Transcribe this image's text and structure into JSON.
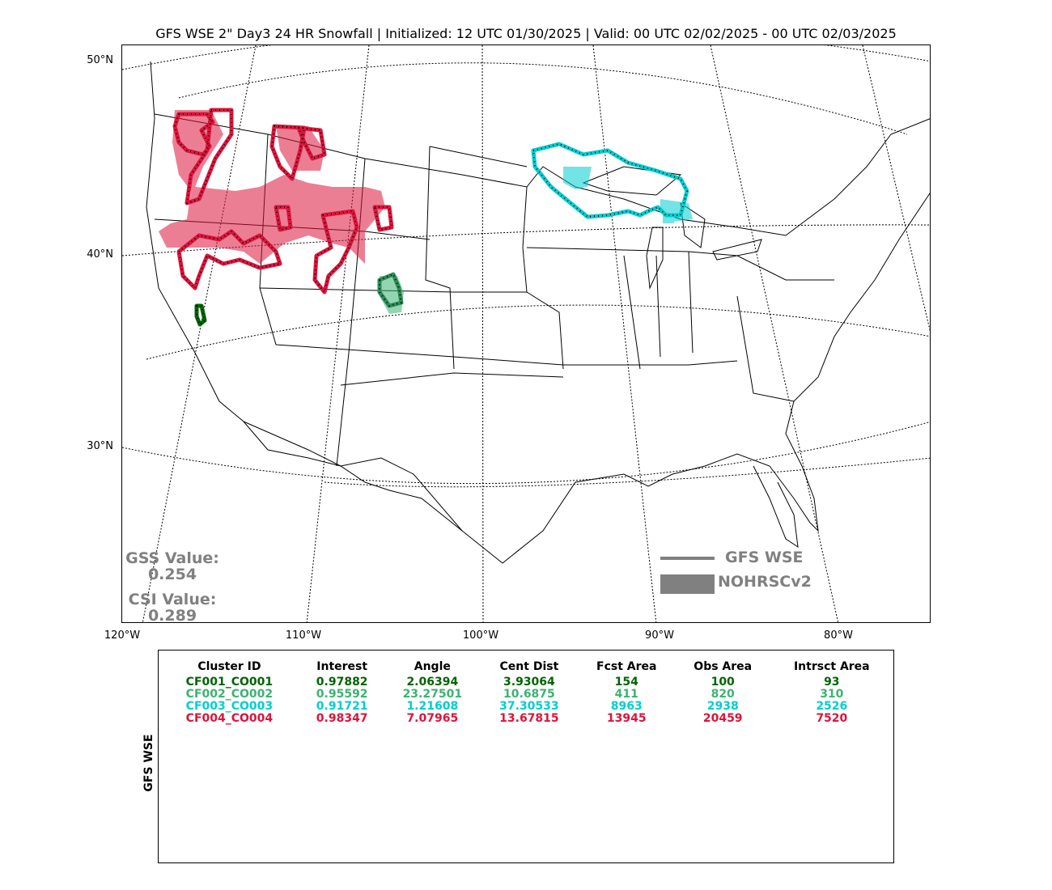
{
  "title": "GFS WSE 2\" Day3 24 HR Snowfall | Initialized: 12 UTC 01/30/2025 | Valid: 00 UTC 02/02/2025 - 00 UTC 02/03/2025",
  "lat_labels": [
    "50°N",
    "40°N",
    "30°N"
  ],
  "lon_labels": [
    "120°W",
    "110°W",
    "100°W",
    "90°W",
    "80°W"
  ],
  "scores": {
    "gss_label": "GSS Value:",
    "gss_value": "0.254",
    "csi_label": "CSI Value:",
    "csi_value": "0.289"
  },
  "legend": {
    "line_label": "GFS WSE",
    "fill_label": "NOHRSCv2",
    "color": "#808080"
  },
  "table": {
    "ylabel": "GFS WSE",
    "headers": [
      "Cluster ID",
      "Interest",
      "Angle",
      "Cent Dist",
      "Fcst Area",
      "Obs Area",
      "Intrsct Area"
    ],
    "rows": [
      {
        "color": "#006400",
        "cells": [
          "CF001_CO001",
          "0.97882",
          "2.06394",
          "3.93064",
          "154",
          "100",
          "93"
        ]
      },
      {
        "color": "#3cb371",
        "cells": [
          "CF002_CO002",
          "0.95592",
          "23.27501",
          "10.6875",
          "411",
          "820",
          "310"
        ]
      },
      {
        "color": "#00ced1",
        "cells": [
          "CF003_CO003",
          "0.91721",
          "1.21608",
          "37.30533",
          "8963",
          "2938",
          "2526"
        ]
      },
      {
        "color": "#dc143c",
        "cells": [
          "CF004_CO004",
          "0.98347",
          "7.07965",
          "13.67815",
          "13945",
          "20459",
          "7520"
        ]
      }
    ]
  },
  "clusters": [
    {
      "id": "CF001_CO001",
      "color": "#006400"
    },
    {
      "id": "CF002_CO002",
      "color": "#3cb371"
    },
    {
      "id": "CF003_CO003",
      "color": "#00ced1"
    },
    {
      "id": "CF004_CO004",
      "color": "#dc143c"
    }
  ]
}
